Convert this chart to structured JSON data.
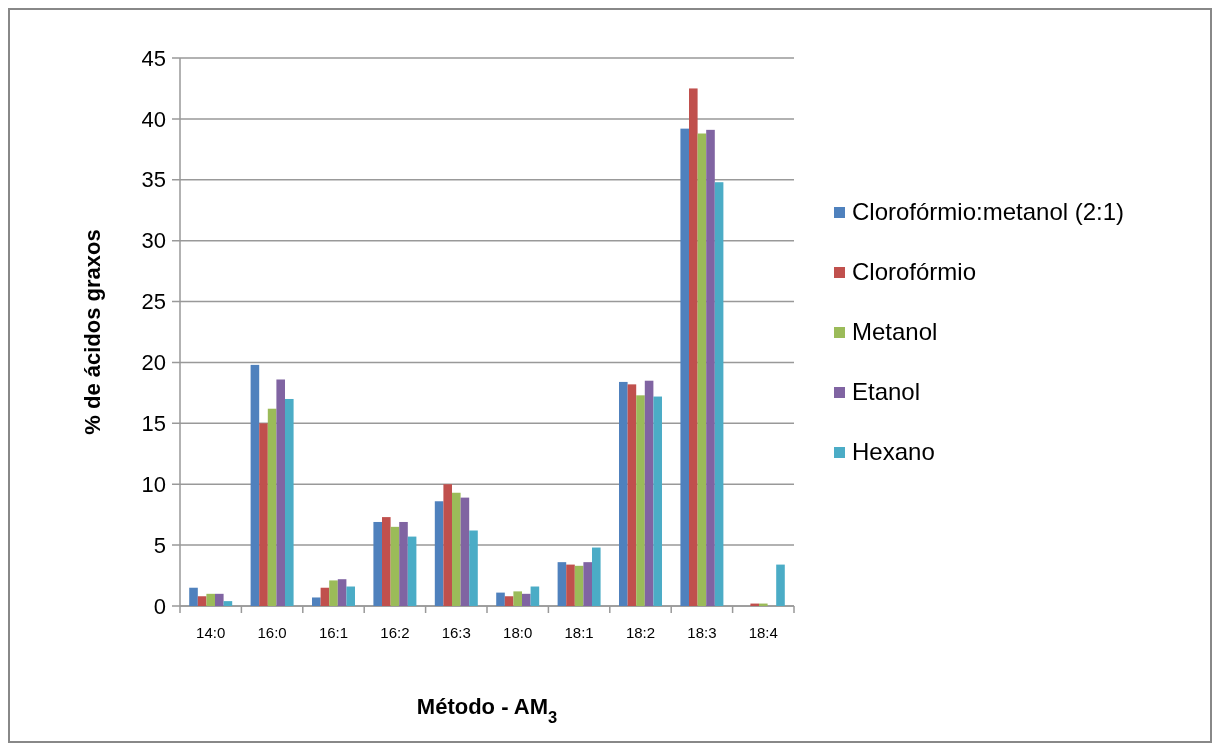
{
  "chart_data": {
    "type": "bar",
    "xlabel": "Método - AM$_{3}$",
    "ylabel": "% de ácidos graxos",
    "categories": [
      "14:0",
      "16:0",
      "16:1",
      "16:2",
      "16:3",
      "18:0",
      "18:1",
      "18:2",
      "18:3",
      "18:4"
    ],
    "series": [
      {
        "name": "Clorofórmio:metanol (2:1)",
        "color": "#4f81bd",
        "values": [
          1.5,
          19.8,
          0.7,
          6.9,
          8.6,
          1.1,
          3.6,
          18.4,
          39.2,
          0
        ]
      },
      {
        "name": "Clorofórmio",
        "color": "#c0504d",
        "values": [
          0.8,
          15.0,
          1.5,
          7.3,
          10.0,
          0.8,
          3.4,
          18.2,
          42.5,
          0.2
        ]
      },
      {
        "name": "Metanol",
        "color": "#9bbb59",
        "values": [
          1.0,
          16.2,
          2.1,
          6.5,
          9.3,
          1.2,
          3.3,
          17.3,
          38.8,
          0.2
        ]
      },
      {
        "name": "Etanol",
        "color": "#8064a2",
        "values": [
          1.0,
          18.6,
          2.2,
          6.9,
          8.9,
          1.0,
          3.6,
          18.5,
          39.1,
          0
        ]
      },
      {
        "name": "Hexano",
        "color": "#4bacc6",
        "values": [
          0.4,
          17.0,
          1.6,
          5.7,
          6.2,
          1.6,
          4.8,
          17.2,
          34.8,
          3.4
        ]
      }
    ],
    "ylim": [
      0,
      45
    ],
    "yticks": [
      0,
      5,
      10,
      15,
      20,
      25,
      30,
      35,
      40,
      45
    ],
    "grid": "y",
    "legend": "right"
  }
}
